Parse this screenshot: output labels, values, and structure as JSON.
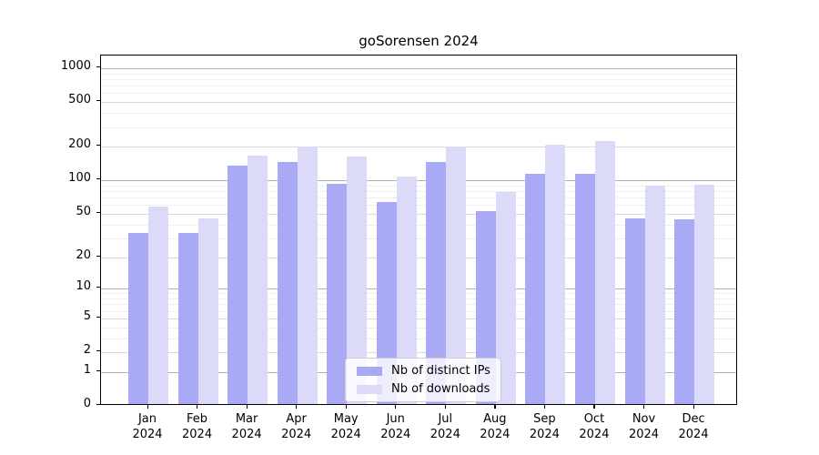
{
  "chart_data": {
    "type": "bar",
    "title": "goSorensen 2024",
    "scale": "log1p",
    "categories": [
      "Jan",
      "Feb",
      "Mar",
      "Apr",
      "May",
      "Jun",
      "Jul",
      "Aug",
      "Sep",
      "Oct",
      "Nov",
      "Dec"
    ],
    "x_sublabel_year": "2024",
    "series": [
      {
        "name": "Nb of distinct IPs",
        "color": "#a9a9f6",
        "values": [
          32,
          32,
          130,
          142,
          89,
          62,
          140,
          51,
          111,
          111,
          44,
          43
        ]
      },
      {
        "name": "Nb of downloads",
        "color": "#dbdbf9",
        "values": [
          56,
          44,
          161,
          194,
          156,
          104,
          192,
          75,
          199,
          215,
          86,
          88
        ]
      }
    ],
    "y_tick_labels": [
      "0",
      "1",
      "2",
      "5",
      "10",
      "20",
      "50",
      "100",
      "200",
      "500",
      "1000"
    ],
    "y_tick_values": [
      0,
      1,
      2,
      5,
      10,
      20,
      50,
      100,
      200,
      500,
      1000
    ],
    "ylim": [
      0,
      1320
    ],
    "grid": {
      "major_values": [
        1,
        10,
        100,
        1000
      ],
      "mid_values": [
        2,
        5,
        20,
        50,
        200,
        500
      ],
      "minor_values": [
        3,
        4,
        6,
        7,
        8,
        9,
        30,
        40,
        60,
        70,
        80,
        90,
        300,
        400,
        600,
        700,
        800,
        900
      ],
      "major_color": "#b0b0b0",
      "mid_color": "#d9d9d9",
      "minor_color": "#efefef"
    },
    "legend": {
      "position": "bottom-center",
      "entries": [
        "Nb of distinct IPs",
        "Nb of downloads"
      ]
    },
    "colors": {
      "distinct_ips": "#a9a9f6",
      "downloads": "#dbdbf9",
      "axis": "#000000",
      "background": "#ffffff"
    }
  }
}
